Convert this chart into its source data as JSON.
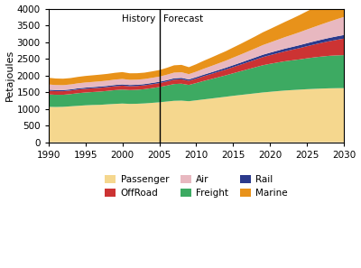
{
  "years": [
    1990,
    1991,
    1992,
    1993,
    1994,
    1995,
    1996,
    1997,
    1998,
    1999,
    2000,
    2001,
    2002,
    2003,
    2004,
    2005,
    2006,
    2007,
    2008,
    2009,
    2010,
    2011,
    2012,
    2013,
    2014,
    2015,
    2016,
    2017,
    2018,
    2019,
    2020,
    2021,
    2022,
    2023,
    2024,
    2025,
    2026,
    2027,
    2028,
    2029,
    2030
  ],
  "passenger": [
    1060,
    1055,
    1060,
    1075,
    1090,
    1105,
    1115,
    1120,
    1135,
    1148,
    1158,
    1148,
    1152,
    1162,
    1178,
    1195,
    1218,
    1240,
    1245,
    1228,
    1255,
    1282,
    1308,
    1335,
    1362,
    1390,
    1415,
    1440,
    1465,
    1490,
    1510,
    1530,
    1548,
    1562,
    1575,
    1588,
    1598,
    1607,
    1614,
    1618,
    1620
  ],
  "freight": [
    370,
    365,
    360,
    365,
    378,
    383,
    388,
    397,
    402,
    412,
    418,
    413,
    417,
    427,
    442,
    457,
    477,
    502,
    507,
    487,
    517,
    551,
    581,
    611,
    641,
    675,
    710,
    745,
    780,
    815,
    838,
    857,
    876,
    891,
    906,
    925,
    944,
    959,
    973,
    982,
    988
  ],
  "offroad": [
    110,
    108,
    107,
    108,
    110,
    111,
    112,
    113,
    114,
    116,
    117,
    115,
    114,
    115,
    116,
    118,
    123,
    130,
    132,
    125,
    133,
    143,
    153,
    163,
    173,
    185,
    198,
    212,
    227,
    243,
    260,
    278,
    298,
    318,
    340,
    363,
    387,
    412,
    438,
    466,
    495
  ],
  "rail": [
    35,
    34,
    34,
    34,
    35,
    35,
    36,
    37,
    37,
    38,
    38,
    37,
    37,
    37,
    38,
    39,
    40,
    42,
    43,
    41,
    43,
    46,
    48,
    51,
    54,
    57,
    60,
    64,
    67,
    71,
    74,
    77,
    80,
    83,
    87,
    90,
    93,
    97,
    100,
    104,
    108
  ],
  "air": [
    155,
    150,
    148,
    148,
    150,
    154,
    154,
    156,
    158,
    161,
    163,
    155,
    153,
    151,
    153,
    155,
    162,
    170,
    168,
    157,
    165,
    177,
    188,
    200,
    212,
    227,
    241,
    256,
    272,
    289,
    305,
    325,
    345,
    366,
    388,
    411,
    434,
    459,
    485,
    513,
    542
  ],
  "marine": [
    200,
    196,
    193,
    191,
    193,
    196,
    199,
    201,
    201,
    203,
    206,
    196,
    193,
    191,
    193,
    196,
    206,
    219,
    221,
    209,
    223,
    239,
    254,
    270,
    284,
    302,
    320,
    340,
    360,
    382,
    405,
    430,
    456,
    484,
    514,
    546,
    578,
    613,
    649,
    687,
    727
  ],
  "colors": {
    "passenger": "#F5D78E",
    "freight": "#3DAA62",
    "offroad": "#CC3333",
    "rail": "#2B3A8C",
    "air": "#E8B8C0",
    "marine": "#E8921A"
  },
  "ylabel": "Petajoules",
  "ylim": [
    0,
    4000
  ],
  "yticks": [
    0,
    500,
    1000,
    1500,
    2000,
    2500,
    3000,
    3500,
    4000
  ],
  "xlim": [
    1990,
    2030
  ],
  "xticks": [
    1990,
    1995,
    2000,
    2005,
    2010,
    2015,
    2020,
    2025,
    2030
  ],
  "history_year": 2005,
  "history_label": "History",
  "forecast_label": "Forecast"
}
